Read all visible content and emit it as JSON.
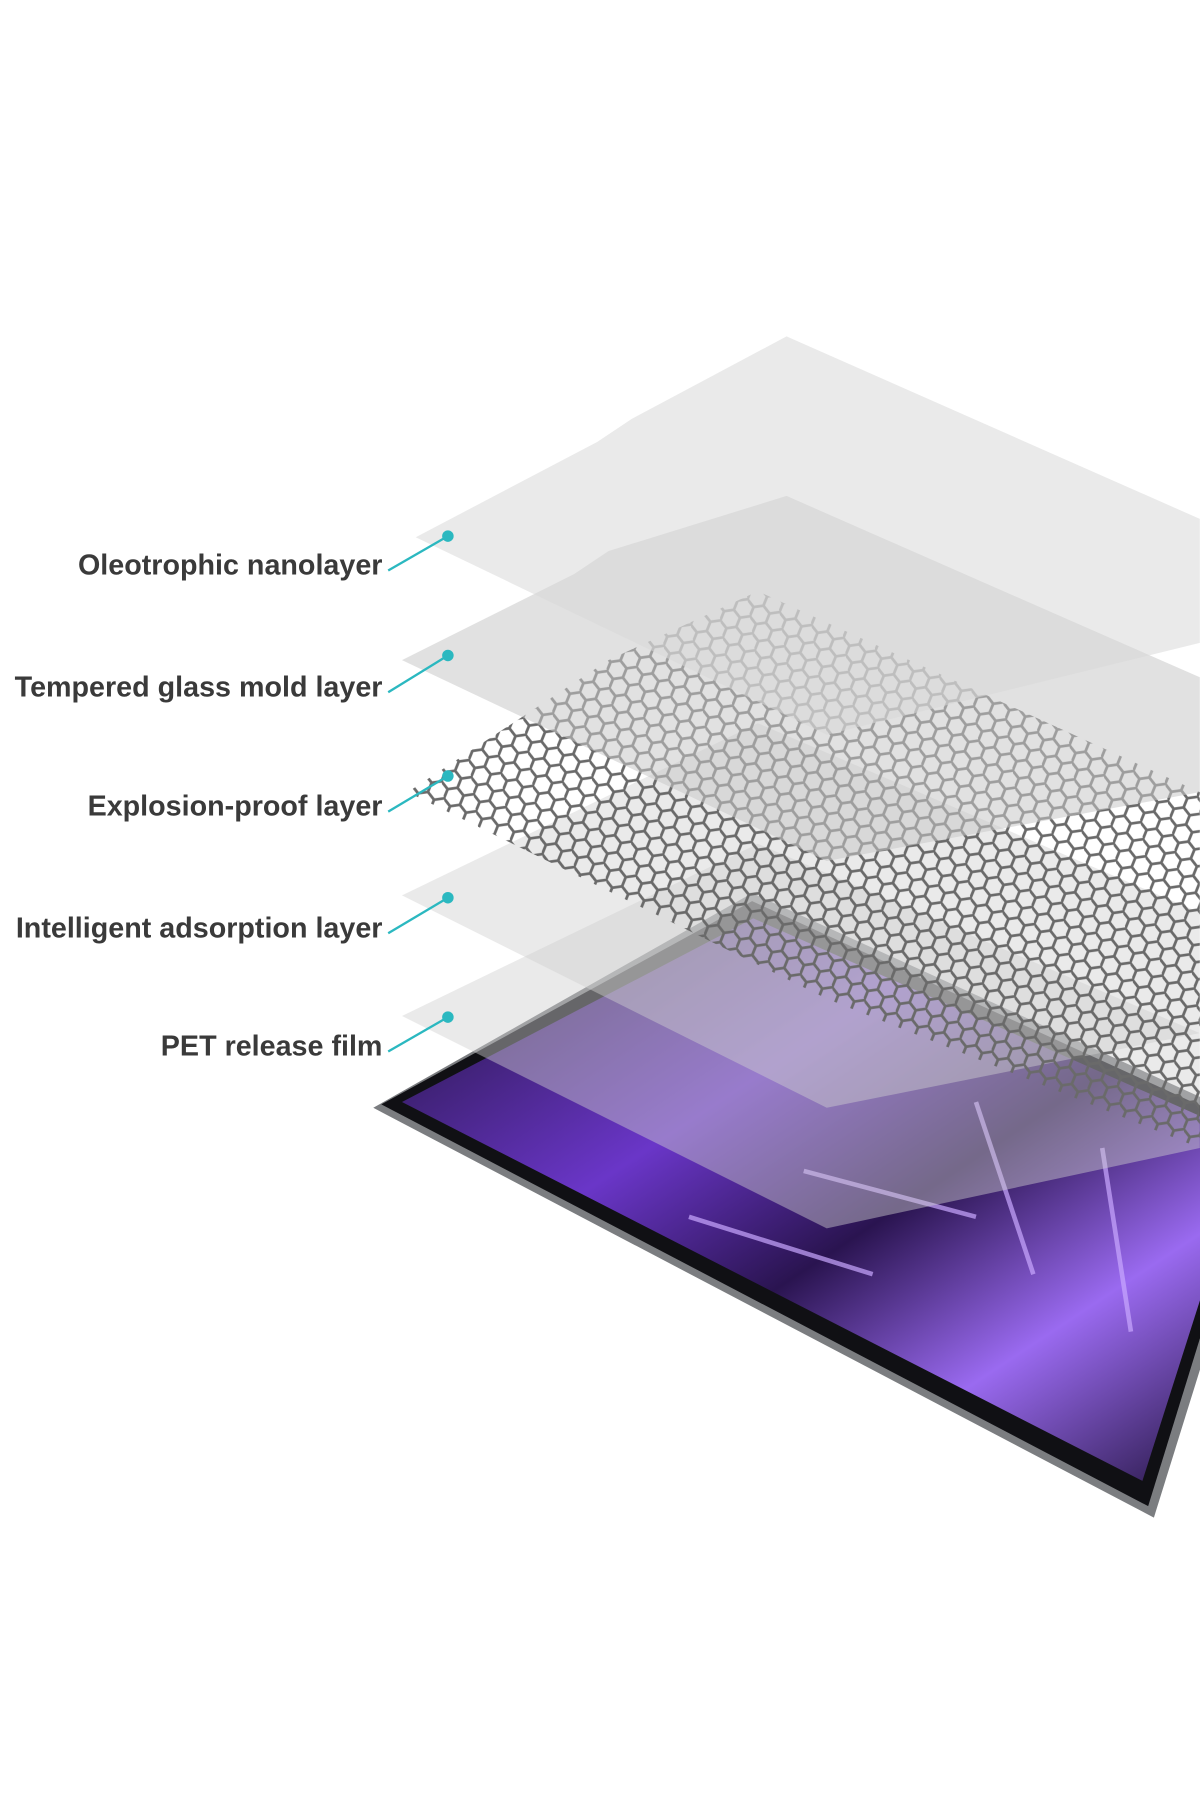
{
  "labels": [
    "Oleotrophic nanolayer",
    "Tempered glass mold layer",
    "Explosion-proof layer",
    "Intelligent adsorption layer",
    "PET release film"
  ]
}
